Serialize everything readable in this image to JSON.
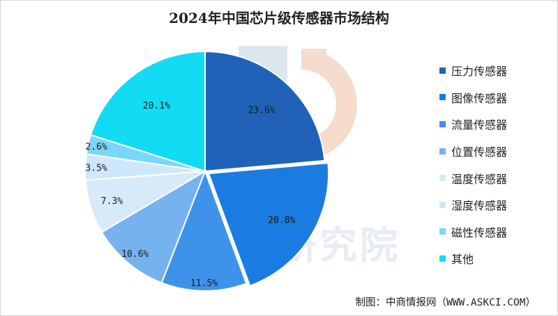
{
  "title": "2024年中国芯片级传感器市场结构",
  "watermark": "中商产业研究院",
  "source": "制图：中商情报网（WWW.ASKCI.COM）",
  "chart_data": {
    "type": "pie",
    "title": "2024年中国芯片级传感器市场结构",
    "legend_position": "right",
    "slices": [
      {
        "name": "压力传感器",
        "value": 23.6,
        "label": "23.6%",
        "color": "#1f62b8"
      },
      {
        "name": "图像传感器",
        "value": 20.8,
        "label": "20.8%",
        "color": "#1a7ce0"
      },
      {
        "name": "流量传感器",
        "value": 11.5,
        "label": "11.5%",
        "color": "#3f92ea"
      },
      {
        "name": "位置传感器",
        "value": 10.6,
        "label": "10.6%",
        "color": "#75b2ef"
      },
      {
        "name": "温度传感器",
        "value": 7.3,
        "label": "7.3%",
        "color": "#d7eafa"
      },
      {
        "name": "湿度传感器",
        "value": 3.5,
        "label": "3.5%",
        "color": "#cfe7fa"
      },
      {
        "name": "磁性传感器",
        "value": 2.6,
        "label": "2.6%",
        "color": "#7ad6f6"
      },
      {
        "name": "其他",
        "value": 20.1,
        "label": "20.1%",
        "color": "#12dcf4"
      }
    ]
  }
}
